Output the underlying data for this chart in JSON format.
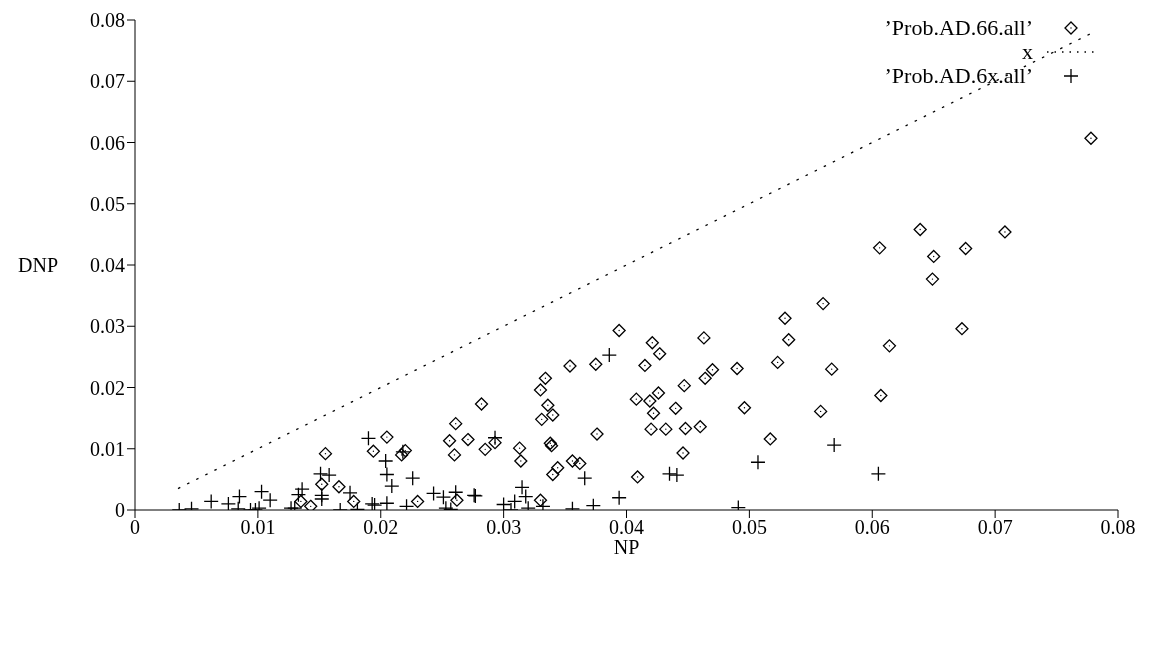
{
  "chart_data": {
    "type": "scatter",
    "xlabel": "NP",
    "ylabel": "DNP",
    "xlim": [
      0,
      0.08
    ],
    "xticks": [
      0,
      0.01,
      0.02,
      0.03,
      0.04,
      0.05,
      0.06,
      0.07,
      0.08
    ],
    "ylim": [
      0,
      0.08
    ],
    "yticks": [
      0,
      0.01,
      0.02,
      0.03,
      0.04,
      0.05,
      0.06,
      0.07,
      0.08
    ],
    "grid": false,
    "legend": "top right",
    "series": [
      {
        "name": "’Prob.AD.66.all’",
        "type": "scatter",
        "marker": "diamond",
        "color": "#000000",
        "x": [
          0.0155,
          0.0152,
          0.0166,
          0.0135,
          0.0143,
          0.0178,
          0.0205,
          0.0194,
          0.0217,
          0.022,
          0.023,
          0.0261,
          0.0256,
          0.0271,
          0.026,
          0.0262,
          0.0282,
          0.0394,
          0.0421,
          0.0427,
          0.0463,
          0.0532,
          0.0415,
          0.0375,
          0.0354,
          0.0334,
          0.033,
          0.0336,
          0.034,
          0.0331,
          0.049,
          0.047,
          0.0464,
          0.0523,
          0.0447,
          0.0408,
          0.0419,
          0.0426,
          0.0422,
          0.044,
          0.0496,
          0.042,
          0.0432,
          0.0448,
          0.046,
          0.0517,
          0.0446,
          0.0409,
          0.0376,
          0.0285,
          0.0293,
          0.0313,
          0.0314,
          0.0338,
          0.0339,
          0.0356,
          0.0362,
          0.0344,
          0.034,
          0.033,
          0.0639,
          0.0708,
          0.0606,
          0.0676,
          0.065,
          0.0649,
          0.056,
          0.0529,
          0.0673,
          0.0614,
          0.0567,
          0.0607,
          0.0558,
          0.0778
        ],
        "values": [
          0.0092,
          0.0042,
          0.0038,
          0.0014,
          0.0006,
          0.0014,
          0.0119,
          0.0096,
          0.009,
          0.0097,
          0.0014,
          0.0141,
          0.0113,
          0.0115,
          0.009,
          0.0016,
          0.0173,
          0.0293,
          0.0273,
          0.0255,
          0.0281,
          0.0278,
          0.0236,
          0.0238,
          0.0235,
          0.0215,
          0.0196,
          0.0171,
          0.0155,
          0.0148,
          0.0231,
          0.0229,
          0.0215,
          0.0241,
          0.0203,
          0.0181,
          0.0178,
          0.0191,
          0.0158,
          0.0166,
          0.0167,
          0.0132,
          0.0132,
          0.0133,
          0.0136,
          0.0116,
          0.0093,
          0.0054,
          0.0124,
          0.0099,
          0.011,
          0.0101,
          0.008,
          0.0109,
          0.0105,
          0.008,
          0.0076,
          0.0069,
          0.0058,
          0.0016,
          0.0458,
          0.0454,
          0.0428,
          0.0427,
          0.0414,
          0.0377,
          0.0337,
          0.0313,
          0.0296,
          0.0268,
          0.023,
          0.0187,
          0.0161,
          0.0607
        ]
      },
      {
        "name": "x",
        "type": "line",
        "marker": "none",
        "line_style": "dotted",
        "color": "#000000",
        "x": [
          0.0035,
          0.0777
        ],
        "values": [
          0.0035,
          0.0777
        ]
      },
      {
        "name": "’Prob.AD.6x.all’",
        "type": "scatter",
        "marker": "cross",
        "color": "#000000",
        "x": [
          0.0036,
          0.0046,
          0.0062,
          0.0076,
          0.0085,
          0.0084,
          0.0094,
          0.0098,
          0.0101,
          0.0103,
          0.011,
          0.0127,
          0.013,
          0.0136,
          0.0133,
          0.0151,
          0.0158,
          0.0152,
          0.0152,
          0.0167,
          0.0175,
          0.0181,
          0.019,
          0.0204,
          0.0205,
          0.0209,
          0.0226,
          0.0193,
          0.0195,
          0.0205,
          0.0221,
          0.0243,
          0.0251,
          0.0261,
          0.0253,
          0.0257,
          0.0276,
          0.0218,
          0.0386,
          0.0366,
          0.0435,
          0.0441,
          0.0507,
          0.0277,
          0.0315,
          0.0318,
          0.0309,
          0.03,
          0.0306,
          0.032,
          0.0332,
          0.0356,
          0.0373,
          0.0394,
          0.0491,
          0.0569,
          0.0605,
          0.0293
        ],
        "values": [
          0,
          0.0002,
          0.0014,
          0.001,
          0.0022,
          0.0002,
          0,
          0,
          0.0003,
          0.003,
          0.0016,
          0.0003,
          0.0003,
          0.0034,
          0.0025,
          0.0059,
          0.0057,
          0.0024,
          0.0018,
          0,
          0.0028,
          0.0001,
          0.0117,
          0.008,
          0.0058,
          0.0039,
          0.0052,
          0.001,
          0.0008,
          0.0011,
          0.0006,
          0.0027,
          0.0021,
          0.0029,
          0.0003,
          0.0001,
          0.0024,
          0.0095,
          0.0253,
          0.0052,
          0.0059,
          0.0057,
          0.0078,
          0.0023,
          0.0037,
          0.0022,
          0.0014,
          0.0009,
          0,
          0.0003,
          0.0006,
          0.0002,
          0.0007,
          0.002,
          0.0004,
          0.0106,
          0.0059,
          0.0118
        ]
      }
    ]
  }
}
